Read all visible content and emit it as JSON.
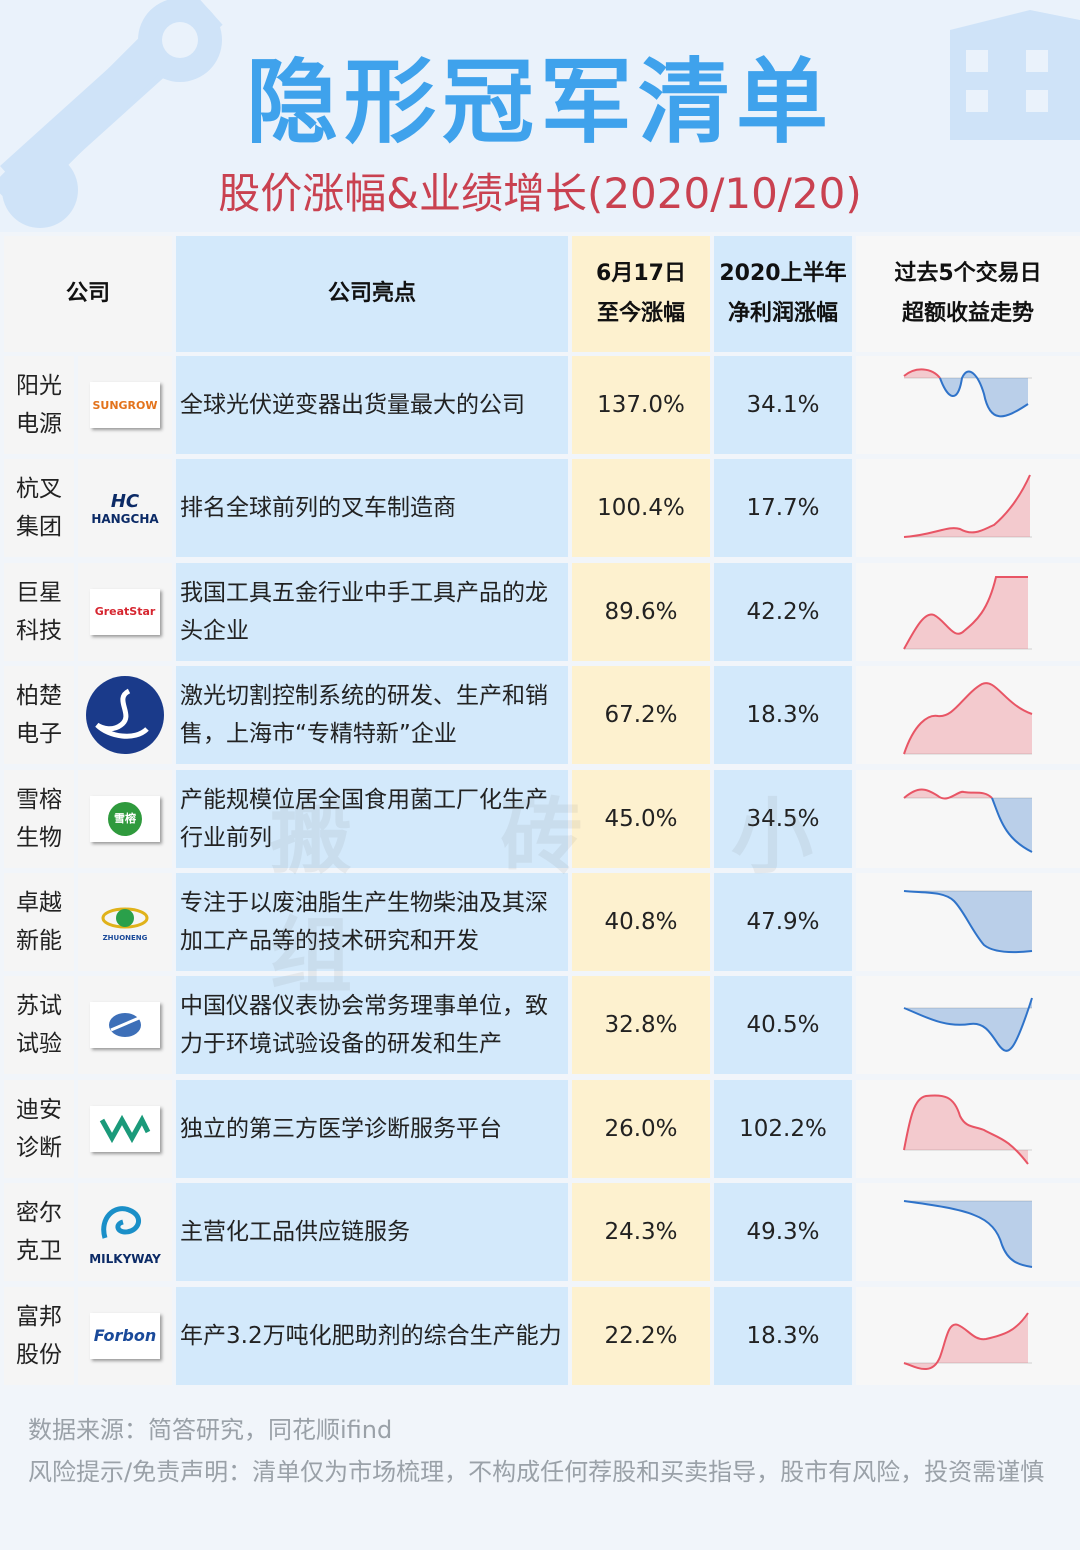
{
  "header": {
    "title": "隐形冠军清单",
    "subtitle": "股价涨幅&业绩增长(2020/10/20)"
  },
  "table": {
    "columns": {
      "company": "公司",
      "highlight": "公司亮点",
      "gain_line1": "6月17日",
      "gain_line2": "至今涨幅",
      "profit_line1": "2020上半年",
      "profit_line2": "净利润涨幅",
      "trend_line1": "过去5个交易日",
      "trend_line2": "超额收益走势"
    },
    "rows": [
      {
        "name_1": "阳光",
        "name_2": "电源",
        "logo": "SUNGROW",
        "highlight": "全球光伏逆变器出货量最大的公司",
        "gain": "137.0%",
        "profit": "34.1%"
      },
      {
        "name_1": "杭叉",
        "name_2": "集团",
        "logo": "HANGCHA",
        "highlight": "排名全球前列的叉车制造商",
        "gain": "100.4%",
        "profit": "17.7%"
      },
      {
        "name_1": "巨星",
        "name_2": "科技",
        "logo": "GreatStar",
        "highlight": "我国工具五金行业中手工具产品的龙头企业",
        "gain": "89.6%",
        "profit": "42.2%"
      },
      {
        "name_1": "柏楚",
        "name_2": "电子",
        "logo": "",
        "highlight": "激光切割控制系统的研发、生产和销售，上海市“专精特新”企业",
        "gain": "67.2%",
        "profit": "18.3%"
      },
      {
        "name_1": "雪榕",
        "name_2": "生物",
        "logo": "雪榕",
        "highlight": "产能规模位居全国食用菌工厂化生产行业前列",
        "gain": "45.0%",
        "profit": "34.5%"
      },
      {
        "name_1": "卓越",
        "name_2": "新能",
        "logo": "ZHUONENG",
        "highlight": "专注于以废油脂生产生物柴油及其深加工产品等的技术研究和开发",
        "gain": "40.8%",
        "profit": "47.9%"
      },
      {
        "name_1": "苏试",
        "name_2": "试验",
        "logo": "",
        "highlight": "中国仪器仪表协会常务理事单位，致力于环境试验设备的研发和生产",
        "gain": "32.8%",
        "profit": "40.5%"
      },
      {
        "name_1": "迪安",
        "name_2": "诊断",
        "logo": "",
        "highlight": "独立的第三方医学诊断服务平台",
        "gain": "26.0%",
        "profit": "102.2%"
      },
      {
        "name_1": "密尔",
        "name_2": "克卫",
        "logo": "MILKYWAY",
        "highlight": "主营化工品供应链服务",
        "gain": "24.3%",
        "profit": "49.3%"
      },
      {
        "name_1": "富邦",
        "name_2": "股份",
        "logo": "Forbon",
        "highlight": "年产3.2万吨化肥助剂的综合生产能力",
        "gain": "22.2%",
        "profit": "18.3%"
      }
    ]
  },
  "watermark": "搬 砖 小 组",
  "footer": {
    "source": "数据来源：简答研究，同花顺ifind",
    "disclaimer": "风险提示/免责声明：清单仅为市场梳理，不构成任何荐股和买卖指导，股市有风险，投资需谨慎"
  },
  "colors": {
    "title": "#3fa2ec",
    "subtitle": "#c94150",
    "positive": "#e85565",
    "negative": "#2f73c9",
    "highlight_bg": "#d3e9fb",
    "gain_bg": "#fdf1cf"
  }
}
